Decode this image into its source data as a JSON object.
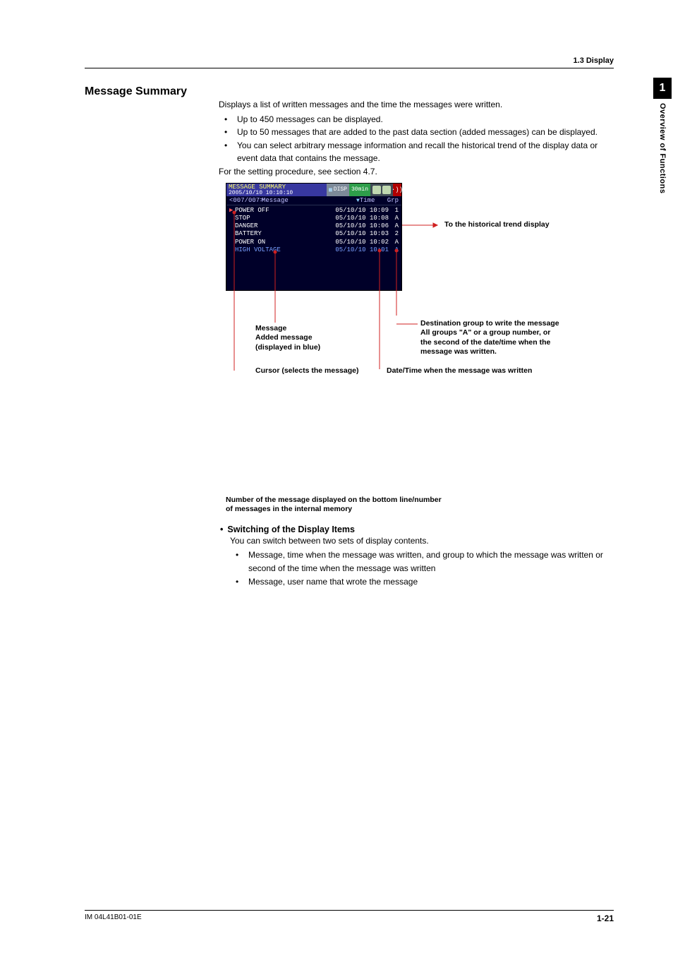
{
  "header": {
    "breadcrumb": "1.3  Display"
  },
  "sidetab": {
    "num": "1",
    "label": "Overview of Functions"
  },
  "section": {
    "title": "Message Summary"
  },
  "intro": {
    "lead": "Displays a list of written messages and the time the messages were written.",
    "b1": "Up to 450 messages can be displayed.",
    "b2": "Up to 50 messages that are added to the past data section (added messages) can be displayed.",
    "b3": "You can select arbitrary message information and recall the historical trend of the display data or event data that contains the message.",
    "tail": "For the setting procedure, see section 4.7."
  },
  "device": {
    "title": "MESSAGE SUMMARY",
    "timestamp": "2005/10/10 10:10:10",
    "disp": "DISP",
    "interval": "30min",
    "cols": {
      "idx": "<007/007>",
      "msg": "Message",
      "time": "Time",
      "grp": "Grp"
    },
    "rows": [
      {
        "arrow": "▶",
        "msg": "POWER OFF",
        "dt": "05/10/10 10:09",
        "grp": "1",
        "cls": ""
      },
      {
        "arrow": "",
        "msg": "STOP",
        "dt": "05/10/10 10:08",
        "grp": "A",
        "cls": ""
      },
      {
        "arrow": "",
        "msg": "DANGER",
        "dt": "05/10/10 10:06",
        "grp": "A",
        "cls": ""
      },
      {
        "arrow": "",
        "msg": "BATTERY",
        "dt": "05/10/10 10:03",
        "grp": "2",
        "cls": ""
      },
      {
        "arrow": "",
        "msg": "POWER ON",
        "dt": "05/10/10 10:02",
        "grp": "A",
        "cls": ""
      },
      {
        "arrow": "",
        "msg": "HIGH VOLTAGE",
        "dt": "05/10/10 10:01",
        "grp": "A",
        "cls": "blue-msg"
      }
    ]
  },
  "annos": {
    "hist": "To the historical trend display",
    "msg_l1": "Message",
    "msg_l2": "Added message",
    "msg_l3": "(displayed in blue)",
    "dest_l1": "Destination group to write the message",
    "dest_l2": "All groups \"A\" or a group number, or",
    "dest_l3": "the second of the date/time when the",
    "dest_l4": "message was written.",
    "cursor": "Cursor (selects the message)",
    "dtwhen": "Date/Time when the message was written",
    "caption_l1": "Number of the message displayed on the bottom line/number",
    "caption_l2": "of messages in the internal memory"
  },
  "switch": {
    "heading": "Switching of the Display Items",
    "lead": "You can switch between two sets of display contents.",
    "b1": "Message, time when the message was written, and group to which the message was written or second of the time when the message was written",
    "b2": "Message, user name that wrote the message"
  },
  "footer": {
    "doc": "IM 04L41B01-01E",
    "page": "1-21"
  },
  "style": {
    "lead_color": "#d02020",
    "arrow_color": "#d02020"
  }
}
